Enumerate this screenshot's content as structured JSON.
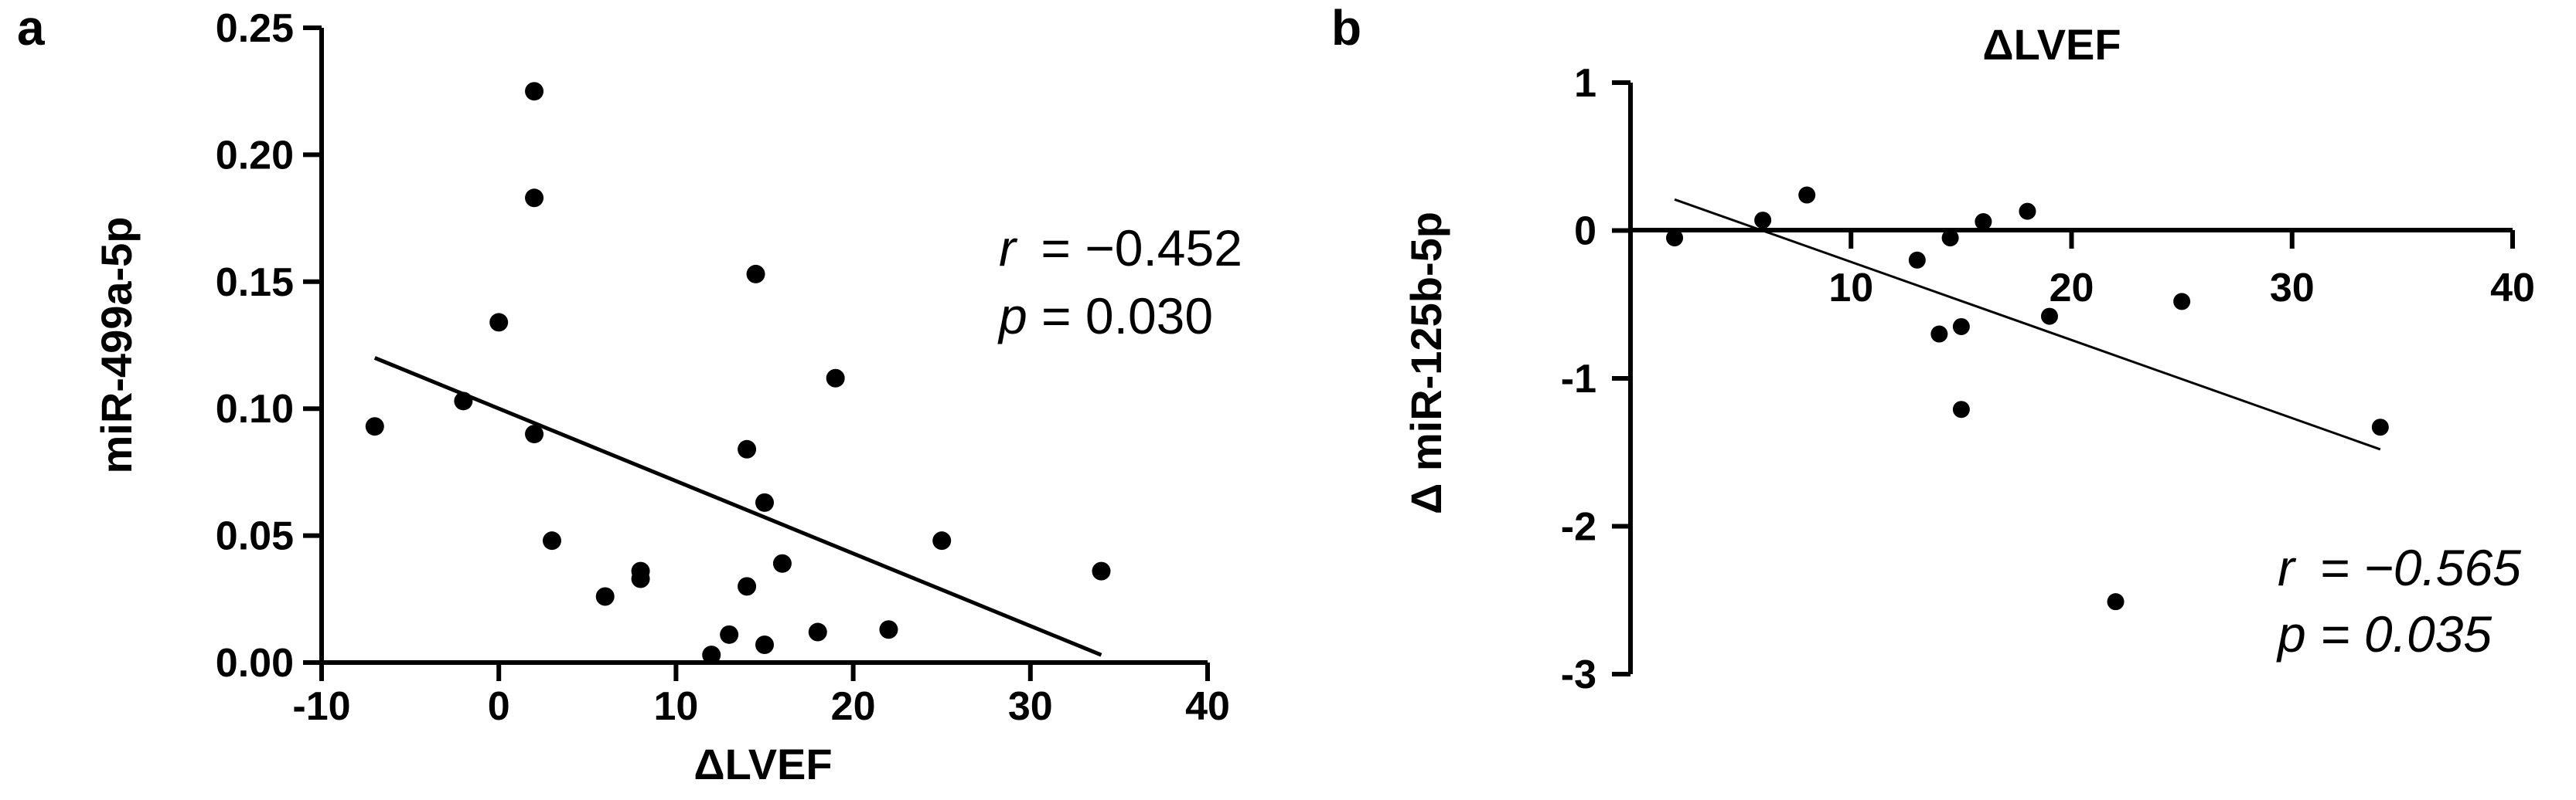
{
  "chart_data": [
    {
      "panel_label": "a",
      "type": "scatter",
      "title": "",
      "xlabel": "ΔLVEF",
      "ylabel": "miR-499a-5p",
      "xlim": [
        -10,
        40
      ],
      "ylim": [
        0,
        0.25
      ],
      "x_ticks": [
        -10,
        0,
        10,
        20,
        30,
        40
      ],
      "x_tick_labels": [
        "-10",
        "0",
        "10",
        "20",
        "30",
        "40"
      ],
      "y_ticks": [
        0,
        0.05,
        0.1,
        0.15,
        0.2,
        0.25
      ],
      "y_tick_labels": [
        "0.00",
        "0.05",
        "0.10",
        "0.15",
        "0.20",
        "0.25"
      ],
      "points": [
        {
          "x": -7,
          "y": 0.093
        },
        {
          "x": -2,
          "y": 0.103
        },
        {
          "x": 0,
          "y": 0.134
        },
        {
          "x": 2,
          "y": 0.225
        },
        {
          "x": 2,
          "y": 0.183
        },
        {
          "x": 2,
          "y": 0.09
        },
        {
          "x": 3,
          "y": 0.048
        },
        {
          "x": 6,
          "y": 0.026
        },
        {
          "x": 8,
          "y": 0.036
        },
        {
          "x": 8,
          "y": 0.033
        },
        {
          "x": 12,
          "y": 0.003
        },
        {
          "x": 13,
          "y": 0.011
        },
        {
          "x": 14,
          "y": 0.084
        },
        {
          "x": 14,
          "y": 0.03
        },
        {
          "x": 14.5,
          "y": 0.153
        },
        {
          "x": 15,
          "y": 0.063
        },
        {
          "x": 15,
          "y": 0.007
        },
        {
          "x": 16,
          "y": 0.039
        },
        {
          "x": 18,
          "y": 0.012
        },
        {
          "x": 19,
          "y": 0.112
        },
        {
          "x": 22,
          "y": 0.013
        },
        {
          "x": 25,
          "y": 0.048
        },
        {
          "x": 34,
          "y": 0.036
        }
      ],
      "fit_line": {
        "x": [
          -7,
          34
        ],
        "y": [
          0.12,
          0.003
        ]
      },
      "stat_r_label": "r",
      "stat_r_value": " = −0.452",
      "stat_p_label": "p",
      "stat_p_value": " = 0.030"
    },
    {
      "panel_label": "b",
      "type": "scatter",
      "title": "ΔLVEF",
      "xlabel": "",
      "ylabel": "Δ miR-125b-5p",
      "xlim": [
        0,
        40
      ],
      "ylim": [
        -3,
        1
      ],
      "x_ticks": [
        10,
        20,
        30,
        40
      ],
      "x_tick_labels": [
        "10",
        "20",
        "30",
        "40"
      ],
      "y_ticks": [
        1,
        0,
        -1,
        -2,
        -3
      ],
      "y_tick_labels": [
        "1",
        "0",
        "-1",
        "-2",
        "-3"
      ],
      "points": [
        {
          "x": 2,
          "y": -0.05
        },
        {
          "x": 6,
          "y": 0.07
        },
        {
          "x": 8,
          "y": 0.24
        },
        {
          "x": 13,
          "y": -0.2
        },
        {
          "x": 14,
          "y": -0.7
        },
        {
          "x": 14.5,
          "y": -0.05
        },
        {
          "x": 15,
          "y": -0.65
        },
        {
          "x": 15,
          "y": -1.21
        },
        {
          "x": 16,
          "y": 0.06
        },
        {
          "x": 18,
          "y": 0.13
        },
        {
          "x": 19,
          "y": -0.58
        },
        {
          "x": 22,
          "y": -2.51
        },
        {
          "x": 25,
          "y": -0.48
        },
        {
          "x": 34,
          "y": -1.33
        }
      ],
      "fit_line": {
        "x": [
          2,
          34
        ],
        "y": [
          0.21,
          -1.48
        ]
      },
      "stat_r_label": "r",
      "stat_r_value": " = −0.565",
      "stat_p_label": "p",
      "stat_p_value": " = 0.035"
    }
  ]
}
